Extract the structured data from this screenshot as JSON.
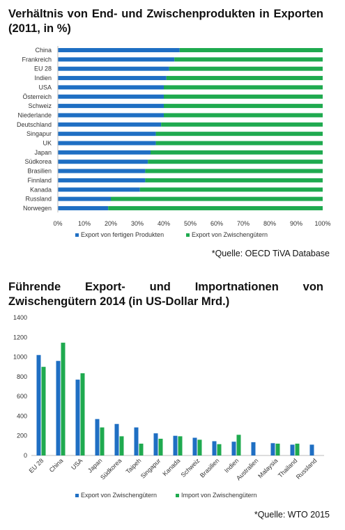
{
  "chart_data": [
    {
      "type": "bar",
      "orientation": "horizontal",
      "stacked": true,
      "title": "Verhältnis von End- und Zwischenprodukten in Exporten (2011, in %)",
      "categories": [
        "China",
        "Frankreich",
        "EU 28",
        "Indien",
        "USA",
        "Österreich",
        "Schweiz",
        "Niederlande",
        "Deutschland",
        "Singapur",
        "UK",
        "Japan",
        "Südkorea",
        "Brasilien",
        "Finnland",
        "Kanada",
        "Russland",
        "Norwegen"
      ],
      "series": [
        {
          "name": "Export von fertigen Produkten",
          "color": "#1f6fc3",
          "values": [
            46,
            44,
            42,
            41,
            40,
            40,
            40,
            40,
            39,
            37,
            37,
            35,
            34,
            33,
            33,
            31,
            20,
            19
          ]
        },
        {
          "name": "Export von Zwischengütern",
          "color": "#1faa4f",
          "values": [
            54,
            56,
            58,
            59,
            60,
            60,
            60,
            60,
            61,
            63,
            63,
            65,
            66,
            67,
            67,
            69,
            80,
            81
          ]
        }
      ],
      "xticks": [
        "0%",
        "10%",
        "20%",
        "30%",
        "40%",
        "50%",
        "60%",
        "70%",
        "80%",
        "90%",
        "100%"
      ],
      "xlim": [
        0,
        100
      ],
      "legend": "bottom",
      "source": "*Quelle: OECD TiVA Database"
    },
    {
      "type": "bar",
      "title": "Führende Export- und Importnationen von Zwischengütern 2014 (in US-Dollar Mrd.)",
      "categories": [
        "EU 28",
        "China",
        "USA",
        "Japan",
        "Südkorea",
        "Taipeh",
        "Singapur",
        "Kanada",
        "Schweiz",
        "Brasilien",
        "Indien",
        "Australien",
        "Malaysia",
        "Thailand",
        "Russland"
      ],
      "series": [
        {
          "name": "Export von Zwischengütern",
          "color": "#1f6fc3",
          "values": [
            1020,
            960,
            770,
            370,
            320,
            285,
            225,
            200,
            180,
            145,
            140,
            135,
            125,
            110,
            110
          ]
        },
        {
          "name": "Import von Zwischengütern",
          "color": "#1faa4f",
          "values": [
            900,
            1145,
            835,
            285,
            195,
            120,
            170,
            195,
            160,
            115,
            210,
            null,
            120,
            120,
            null
          ]
        }
      ],
      "yticks": [
        "0",
        "200",
        "400",
        "600",
        "800",
        "1000",
        "1200",
        "1400"
      ],
      "ylim": [
        0,
        1400
      ],
      "legend": "bottom",
      "source": "*Quelle: WTO 2015"
    }
  ]
}
